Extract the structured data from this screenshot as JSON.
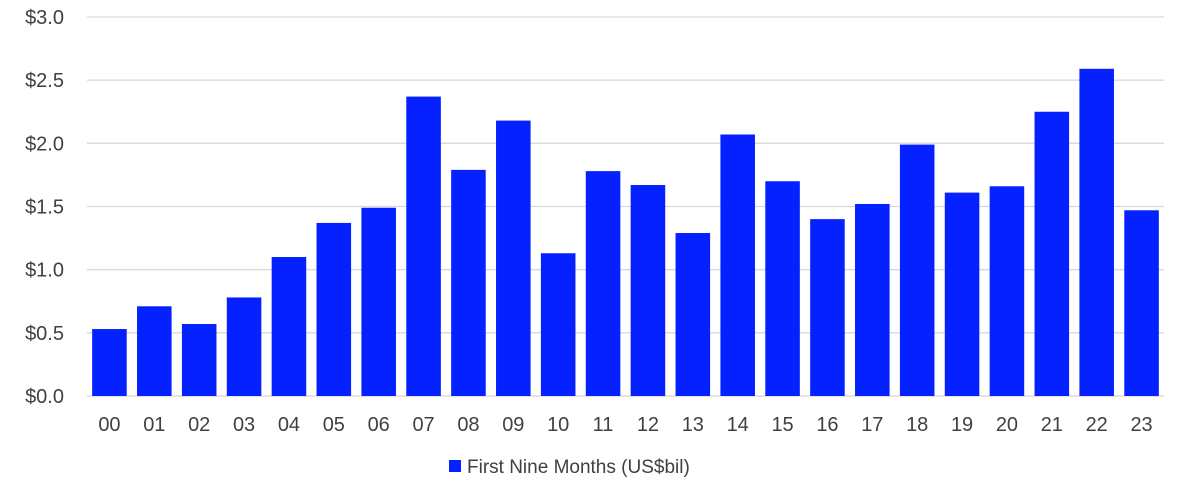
{
  "chart_data": {
    "type": "bar",
    "categories": [
      "00",
      "01",
      "02",
      "03",
      "04",
      "05",
      "06",
      "07",
      "08",
      "09",
      "10",
      "11",
      "12",
      "13",
      "14",
      "15",
      "16",
      "17",
      "18",
      "19",
      "20",
      "21",
      "22",
      "23"
    ],
    "series": [
      {
        "name": "First Nine Months (US$bil)",
        "color": "#0521FF",
        "values": [
          0.53,
          0.71,
          0.57,
          0.78,
          1.1,
          1.37,
          1.49,
          2.37,
          1.79,
          2.18,
          1.13,
          1.78,
          1.67,
          1.29,
          2.07,
          1.7,
          1.4,
          1.52,
          1.99,
          1.61,
          1.66,
          2.25,
          2.59,
          1.47
        ]
      }
    ],
    "y_ticks": [
      "$0.0",
      "$0.5",
      "$1.0",
      "$1.5",
      "$2.0",
      "$2.5",
      "$3.0"
    ],
    "ylim": [
      0,
      3.0
    ],
    "y_step": 0.5,
    "grid": true,
    "gridline_color": "#D9D9D9",
    "legend_position": "bottom-center",
    "title": "",
    "xlabel": "",
    "ylabel": ""
  }
}
